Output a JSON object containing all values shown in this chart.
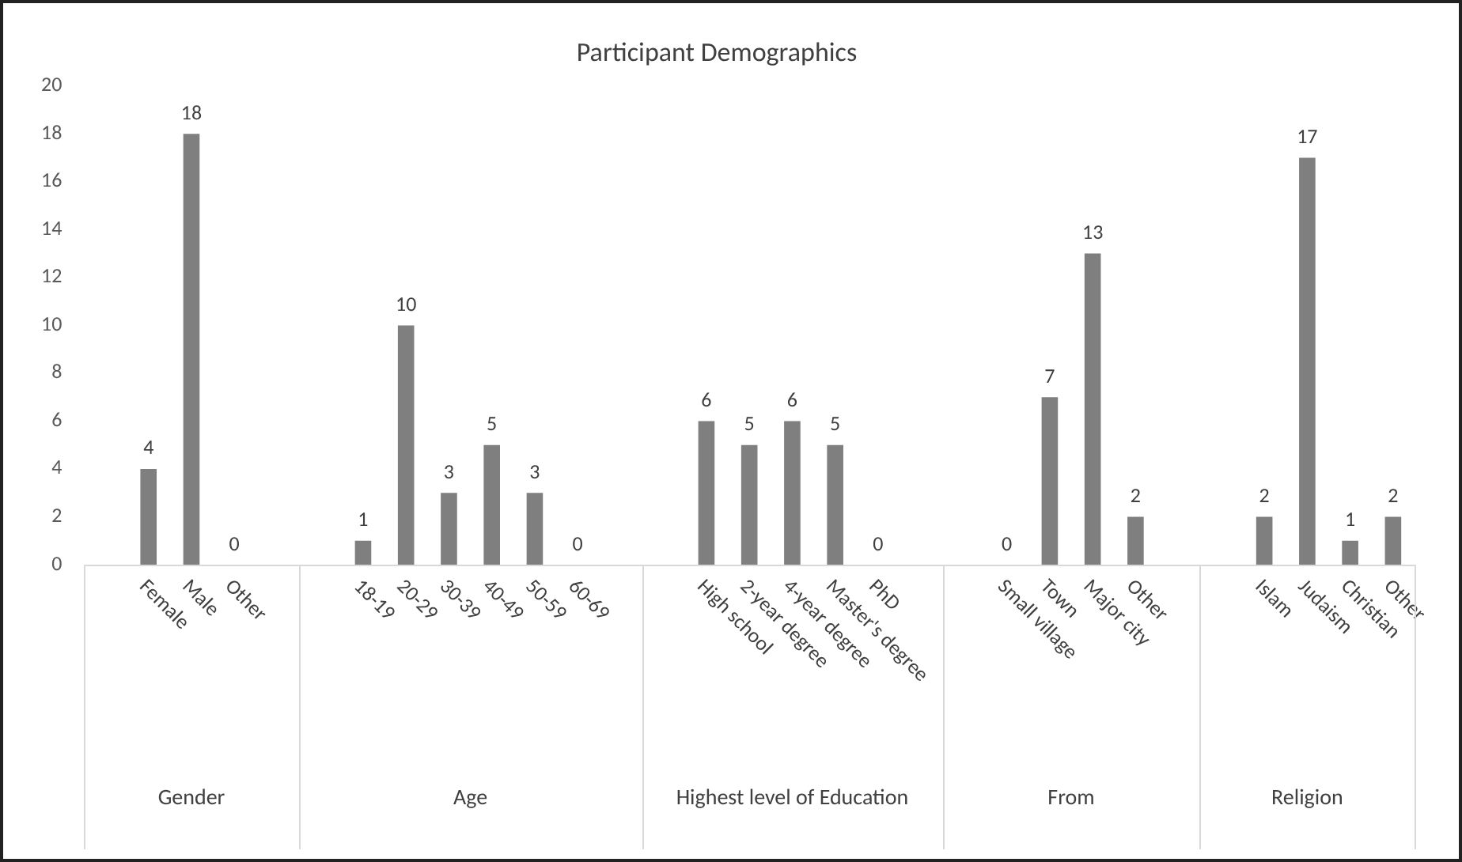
{
  "chart_data": {
    "type": "bar",
    "title": "Participant Demographics",
    "categories": [
      null,
      "Female",
      "Male",
      "Other",
      null,
      null,
      "18-19",
      "20-29",
      "30-39",
      "40-49",
      "50-59",
      "60-69",
      null,
      null,
      "High school",
      "2-year degree",
      "4-year degree",
      "Master's degree",
      "PhD",
      null,
      null,
      "Small village",
      "Town",
      "Major city",
      "Other",
      null,
      null,
      "Islam",
      "Judaism",
      "Christian",
      "Other"
    ],
    "values": [
      null,
      4,
      18,
      0,
      null,
      null,
      1,
      10,
      3,
      5,
      3,
      0,
      null,
      null,
      6,
      5,
      6,
      5,
      0,
      null,
      null,
      0,
      7,
      13,
      2,
      null,
      null,
      2,
      17,
      1,
      2
    ],
    "color": "#7f7f7f",
    "ylim": [
      0,
      20
    ],
    "yticks": [
      0,
      2,
      4,
      6,
      8,
      10,
      12,
      14,
      16,
      18,
      20
    ],
    "grid": false,
    "legend": false,
    "data_labels": true,
    "annotations": [
      "Gender",
      "Age",
      "Highest level of Education",
      "From",
      "Religion"
    ]
  }
}
